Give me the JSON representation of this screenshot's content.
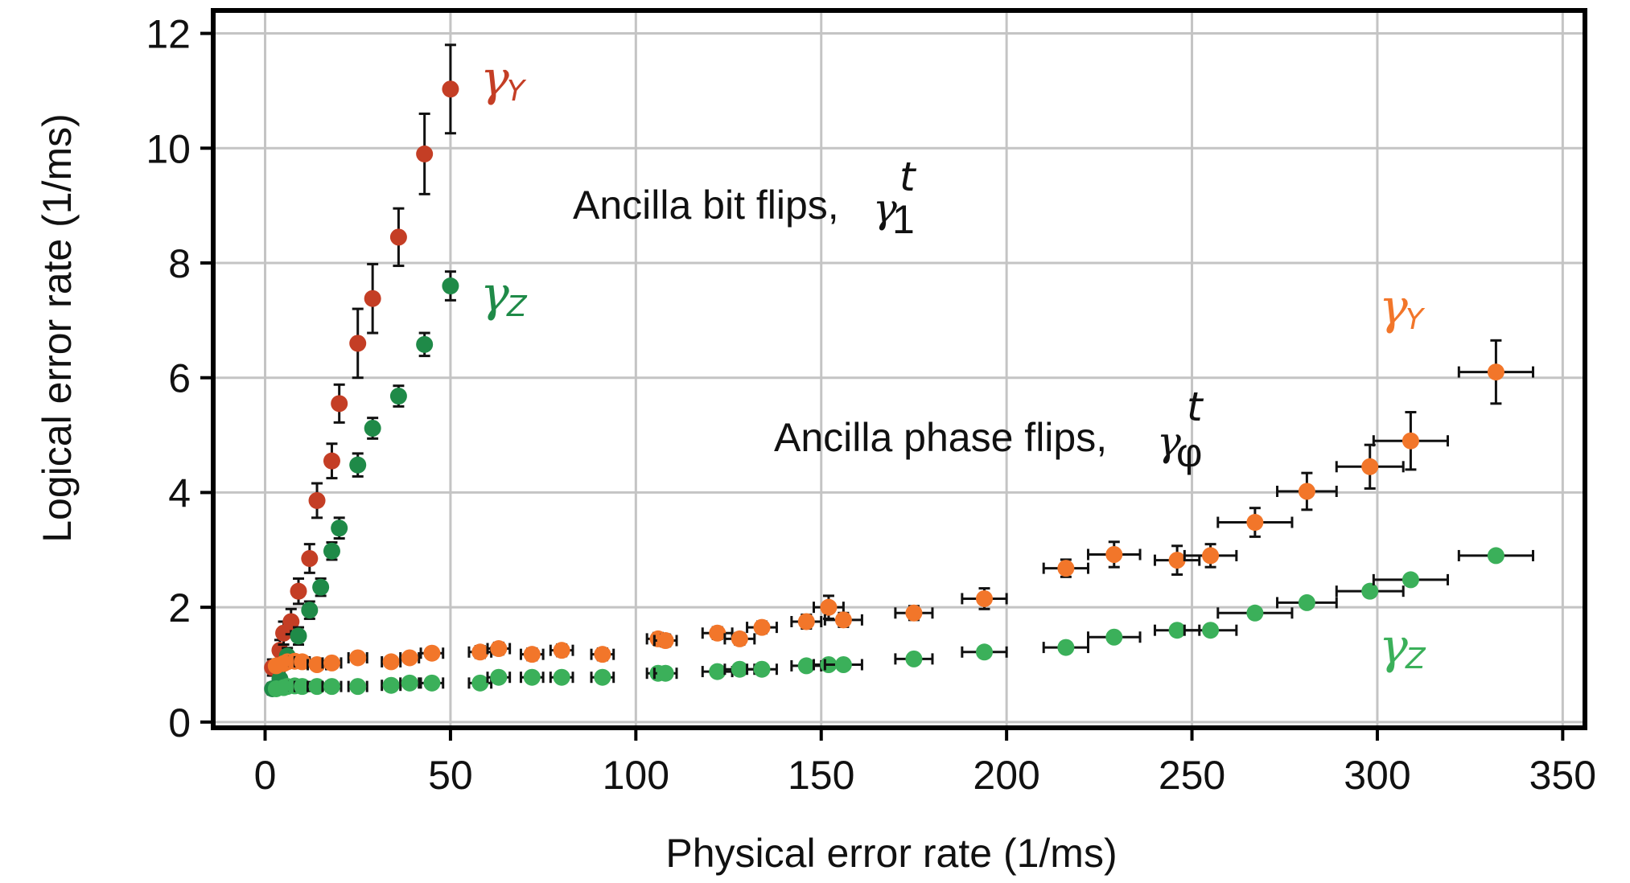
{
  "chart_data": {
    "type": "scatter",
    "xlabel": "Physical error rate (1/ms)",
    "ylabel": "Logical error rate (1/ms)",
    "xlim": [
      -14,
      356
    ],
    "ylim": [
      -0.1,
      12.4
    ],
    "xticks": [
      "0",
      "50",
      "100",
      "150",
      "200",
      "250",
      "300",
      "350"
    ],
    "yticks": [
      "0",
      "2",
      "4",
      "6",
      "8",
      "10",
      "12"
    ],
    "grid": true,
    "annotations": {
      "bit_flips": {
        "label": "Ancilla bit flips,",
        "symbol": "γ",
        "superscript": "t",
        "subscript": "1"
      },
      "phase_flips": {
        "label": "Ancilla phase flips,",
        "symbol": "γ",
        "superscript": "t",
        "subscript": "φ"
      }
    },
    "series": [
      {
        "key": "bit_gY",
        "legend_symbol": "γ",
        "legend_subscript": "Y",
        "color": "#c43e25",
        "errorbar_style": "solid",
        "points": [
          [
            2,
            0.95,
            0.1,
            0.14
          ],
          [
            4,
            1.25,
            0.1,
            0.18
          ],
          [
            5,
            1.55,
            0.12,
            0.2
          ],
          [
            7,
            1.75,
            0.12,
            0.22
          ],
          [
            9,
            2.28,
            0.14,
            0.22
          ],
          [
            12,
            2.85,
            0.14,
            0.25
          ],
          [
            14,
            3.86,
            0.15,
            0.3
          ],
          [
            18,
            4.55,
            0.2,
            0.3
          ],
          [
            20,
            5.55,
            0.22,
            0.33
          ],
          [
            25,
            6.6,
            0.3,
            0.6
          ],
          [
            29,
            7.38,
            0.3,
            0.6
          ],
          [
            36,
            8.45,
            0.4,
            0.5
          ],
          [
            43,
            9.9,
            0.5,
            0.7
          ],
          [
            50,
            11.03,
            0.5,
            0.77
          ]
        ]
      },
      {
        "key": "bit_gZ",
        "legend_symbol": "γ",
        "legend_subscript": "Z",
        "color": "#1f8a48",
        "errorbar_style": "solid",
        "points": [
          [
            2,
            0.58,
            0.08,
            0.1
          ],
          [
            4,
            0.75,
            0.1,
            0.12
          ],
          [
            6,
            1.15,
            0.1,
            0.14
          ],
          [
            9,
            1.5,
            0.12,
            0.15
          ],
          [
            12,
            1.95,
            0.12,
            0.15
          ],
          [
            15,
            2.35,
            0.13,
            0.15
          ],
          [
            18,
            2.98,
            0.15,
            0.15
          ],
          [
            20,
            3.38,
            0.18,
            0.18
          ],
          [
            25,
            4.48,
            0.25,
            0.2
          ],
          [
            29,
            5.12,
            0.28,
            0.18
          ],
          [
            36,
            5.68,
            0.35,
            0.18
          ],
          [
            43,
            6.58,
            0.45,
            0.2
          ],
          [
            50,
            7.6,
            0.5,
            0.25
          ]
        ]
      },
      {
        "key": "phase_gY",
        "legend_symbol": "γ",
        "legend_subscript": "Y",
        "color": "#f2762a",
        "errorbar_style": "solid",
        "points": [
          [
            3,
            0.98,
            1.2,
            0.06
          ],
          [
            5,
            1.02,
            1.2,
            0.06
          ],
          [
            6,
            1.05,
            1.2,
            0.06
          ],
          [
            8,
            1.06,
            1.5,
            0.06
          ],
          [
            10,
            1.05,
            2,
            0.06
          ],
          [
            14,
            1.0,
            2.5,
            0.06
          ],
          [
            18,
            1.03,
            2.5,
            0.06
          ],
          [
            25,
            1.12,
            2.5,
            0.08
          ],
          [
            34,
            1.05,
            2.5,
            0.08
          ],
          [
            39,
            1.12,
            2.5,
            0.08
          ],
          [
            45,
            1.2,
            3,
            0.08
          ],
          [
            58,
            1.22,
            3,
            0.1
          ],
          [
            63,
            1.28,
            3,
            0.1
          ],
          [
            72,
            1.18,
            3,
            0.1
          ],
          [
            80,
            1.25,
            3,
            0.1
          ],
          [
            91,
            1.18,
            3,
            0.1
          ],
          [
            106,
            1.45,
            3,
            0.1
          ],
          [
            108,
            1.42,
            3,
            0.1
          ],
          [
            122,
            1.55,
            4,
            0.1
          ],
          [
            128,
            1.45,
            4,
            0.1
          ],
          [
            134,
            1.65,
            4,
            0.1
          ],
          [
            146,
            1.75,
            4,
            0.12
          ],
          [
            152,
            2.0,
            4,
            0.2
          ],
          [
            156,
            1.78,
            5,
            0.12
          ],
          [
            175,
            1.9,
            5,
            0.12
          ],
          [
            194,
            2.15,
            6,
            0.18
          ],
          [
            216,
            2.68,
            6,
            0.15
          ],
          [
            229,
            2.92,
            7,
            0.22
          ],
          [
            246,
            2.82,
            6,
            0.25
          ],
          [
            255,
            2.9,
            7,
            0.2
          ],
          [
            267,
            3.48,
            10,
            0.25
          ],
          [
            281,
            4.02,
            8,
            0.32
          ],
          [
            298,
            4.45,
            9,
            0.38
          ],
          [
            309,
            4.9,
            10,
            0.5
          ],
          [
            332,
            6.1,
            10,
            0.55
          ]
        ]
      },
      {
        "key": "phase_gZ",
        "legend_symbol": "γ",
        "legend_subscript": "Z",
        "color": "#3bb05a",
        "errorbar_style": "solid",
        "points": [
          [
            3,
            0.58,
            1.2,
            0.05
          ],
          [
            5,
            0.6,
            1.2,
            0.05
          ],
          [
            6,
            0.62,
            1.2,
            0.05
          ],
          [
            8,
            0.63,
            1.5,
            0.05
          ],
          [
            10,
            0.62,
            2,
            0.05
          ],
          [
            14,
            0.62,
            2.5,
            0.05
          ],
          [
            18,
            0.62,
            2.5,
            0.05
          ],
          [
            25,
            0.62,
            2.5,
            0.06
          ],
          [
            34,
            0.64,
            2.5,
            0.06
          ],
          [
            39,
            0.68,
            2.5,
            0.06
          ],
          [
            45,
            0.68,
            3,
            0.06
          ],
          [
            58,
            0.68,
            3,
            0.06
          ],
          [
            63,
            0.78,
            3,
            0.06
          ],
          [
            72,
            0.78,
            3,
            0.06
          ],
          [
            80,
            0.78,
            3,
            0.06
          ],
          [
            91,
            0.78,
            3,
            0.06
          ],
          [
            106,
            0.85,
            3,
            0.06
          ],
          [
            108,
            0.85,
            3,
            0.06
          ],
          [
            122,
            0.88,
            4,
            0.06
          ],
          [
            128,
            0.92,
            4,
            0.06
          ],
          [
            134,
            0.92,
            4,
            0.06
          ],
          [
            146,
            0.98,
            4,
            0.06
          ],
          [
            152,
            1.0,
            4,
            0.06
          ],
          [
            156,
            1.0,
            5,
            0.06
          ],
          [
            175,
            1.1,
            5,
            0.06
          ],
          [
            194,
            1.22,
            6,
            0.06
          ],
          [
            216,
            1.3,
            6,
            0.06
          ],
          [
            229,
            1.48,
            7,
            0.06
          ],
          [
            246,
            1.6,
            6,
            0.06
          ],
          [
            255,
            1.6,
            7,
            0.06
          ],
          [
            267,
            1.9,
            10,
            0.06
          ],
          [
            281,
            2.08,
            8,
            0.06
          ],
          [
            298,
            2.28,
            9,
            0.06
          ],
          [
            309,
            2.48,
            10,
            0.06
          ],
          [
            332,
            2.9,
            10,
            0.06
          ]
        ]
      }
    ]
  }
}
